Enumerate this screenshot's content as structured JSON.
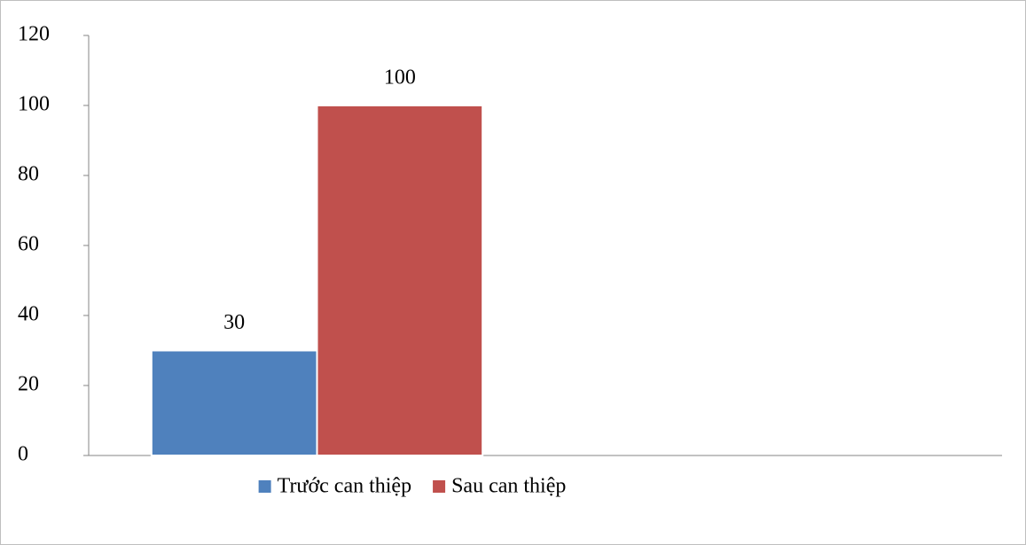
{
  "chart_data": {
    "type": "bar",
    "categories": [
      null,
      null
    ],
    "series": [
      {
        "name": "Trước can thiệp",
        "color": "#4f81bd",
        "values": [
          30,
          null
        ]
      },
      {
        "name": "Sau can thiệp",
        "color": "#c0504d",
        "values": [
          100,
          null
        ]
      }
    ],
    "ylim": [
      0,
      120
    ],
    "yticks": [
      0,
      20,
      40,
      60,
      80,
      100,
      120
    ],
    "legend": "bottom"
  }
}
